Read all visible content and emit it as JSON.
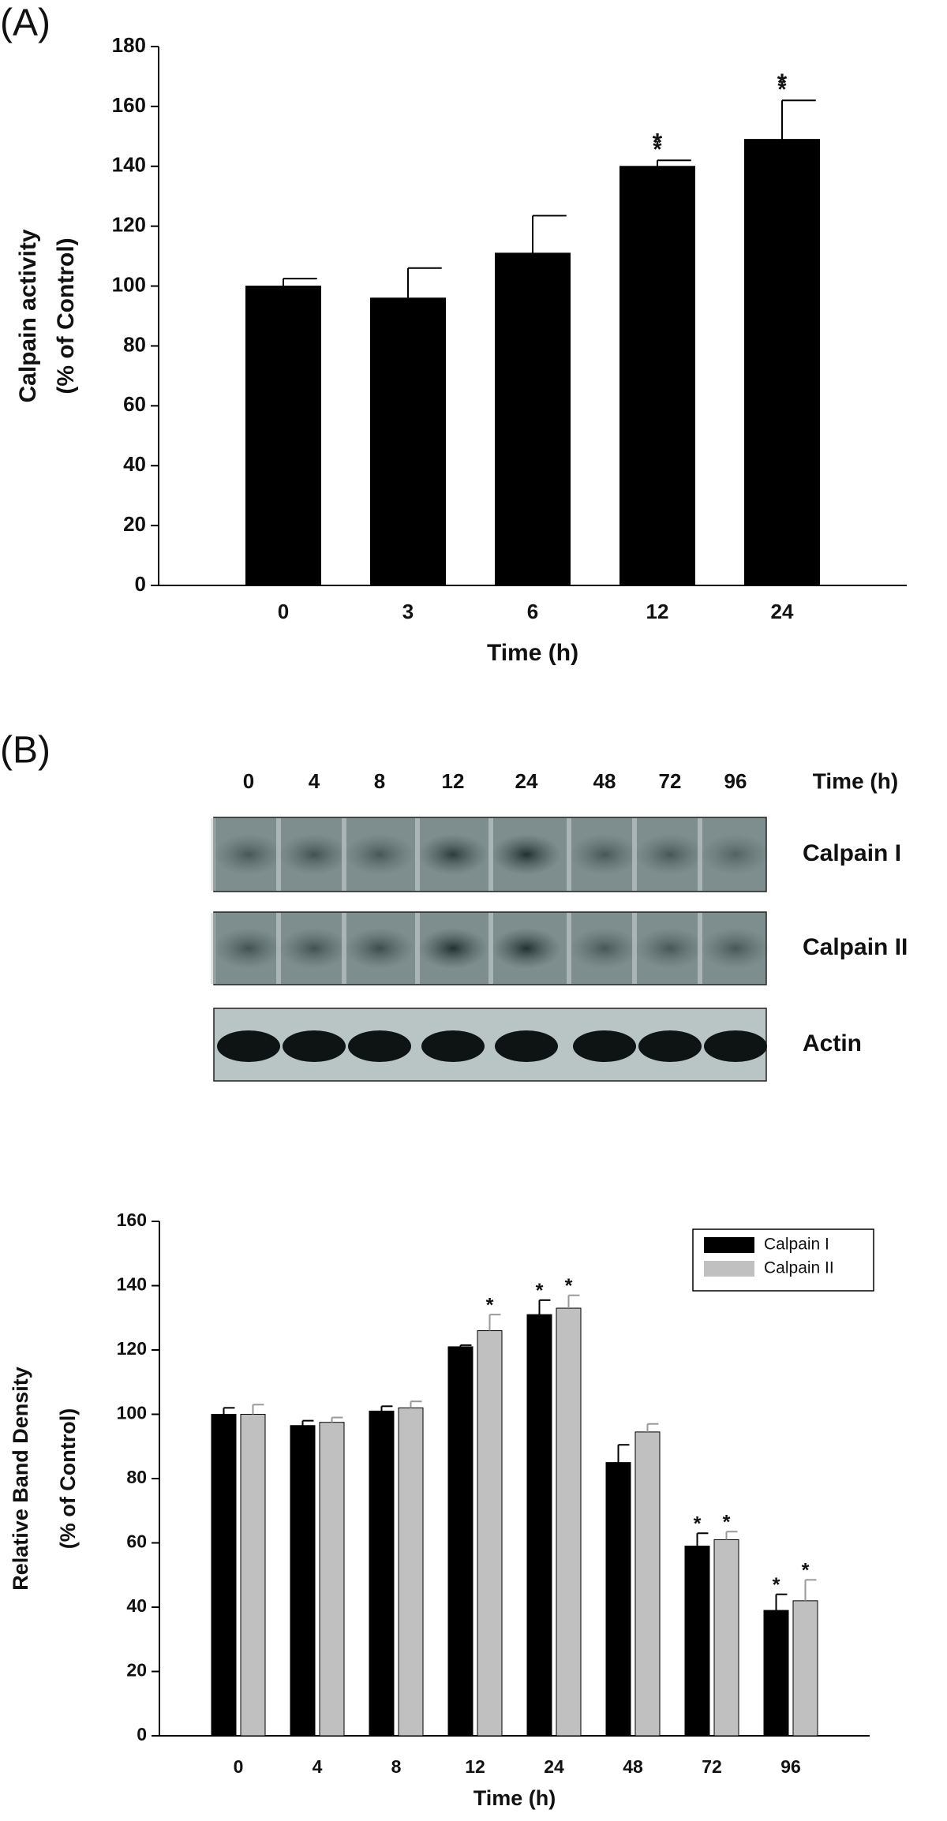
{
  "chart_data": [
    {
      "type": "bar",
      "panel_label": "(A)",
      "categories": [
        "0",
        "3",
        "6",
        "12",
        "24"
      ],
      "values": [
        100,
        96,
        111,
        140,
        149
      ],
      "errors": [
        2.5,
        10,
        12.5,
        2,
        13
      ],
      "color": "#000000",
      "annotations": [
        {
          "x": "12",
          "text": "*"
        },
        {
          "x": "24",
          "text": "*"
        }
      ],
      "xlabel": "Time (h)",
      "ylabel": [
        "Calpain activity",
        "(% of Control)"
      ],
      "ylim": [
        0,
        180
      ],
      "yticks": [
        0,
        20,
        40,
        60,
        80,
        100,
        120,
        140,
        160,
        180
      ]
    },
    {
      "type": "bar",
      "categories": [
        "0",
        "4",
        "8",
        "12",
        "24",
        "48",
        "72",
        "96"
      ],
      "series": [
        {
          "name": "Calpain I",
          "color": "#000000",
          "values": [
            100,
            96.5,
            101,
            121,
            131,
            85,
            59,
            39
          ],
          "errors": [
            2,
            1.5,
            1.5,
            0.5,
            4.5,
            5.5,
            4,
            5
          ],
          "annotations": [
            {
              "x": "24",
              "text": "*"
            },
            {
              "x": "72",
              "text": "*"
            },
            {
              "x": "96",
              "text": "*"
            }
          ]
        },
        {
          "name": "Calpain II",
          "color": "#c0c0c0",
          "values": [
            100,
            97.5,
            102,
            126,
            133,
            94.5,
            61,
            42
          ],
          "errors": [
            3,
            1.5,
            2,
            5,
            4,
            2.5,
            2.5,
            6.5
          ],
          "annotations": [
            {
              "x": "12",
              "text": "*"
            },
            {
              "x": "24",
              "text": "*"
            },
            {
              "x": "72",
              "text": "*"
            },
            {
              "x": "96",
              "text": "*"
            }
          ]
        }
      ],
      "xlabel": "Time (h)",
      "ylabel": [
        "Relative Band Density",
        "(% of Control)"
      ],
      "ylim": [
        0,
        160
      ],
      "yticks": [
        0,
        20,
        40,
        60,
        80,
        100,
        120,
        140,
        160
      ],
      "legend": "upper right"
    }
  ],
  "blot": {
    "panel_label": "(B)",
    "lanes": [
      "0",
      "4",
      "8",
      "12",
      "24",
      "48",
      "72",
      "96"
    ],
    "lane_axis_label": "Time (h)",
    "rows": [
      "Calpain I",
      "Calpain II",
      "Actin"
    ]
  }
}
